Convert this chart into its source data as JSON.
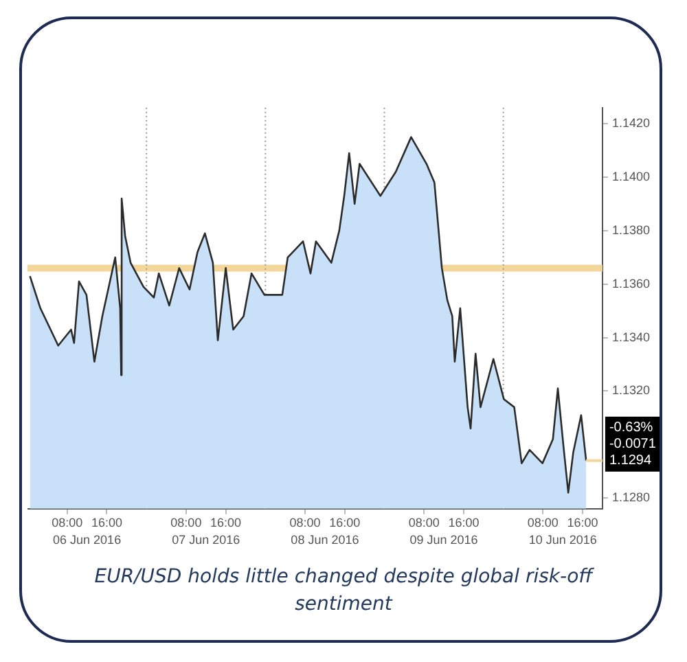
{
  "chart_data": {
    "type": "area",
    "legend": false,
    "marker": "none",
    "line_style": "solid",
    "series": [
      {
        "color": "#c8e1f8",
        "x": [
          "2016-06-06T00:30",
          "2016-06-06T02:36",
          "2016-06-06T06:12",
          "2016-06-06T08:48",
          "2016-06-06T09:24",
          "2016-06-06T10:24",
          "2016-06-06T11:54",
          "2016-06-06T13:30",
          "2016-06-06T15:06",
          "2016-06-06T17:42",
          "2016-06-06T18:42",
          "2016-06-06T18:54",
          "2016-06-06T19:00",
          "2016-06-06T19:42",
          "2016-06-06T20:48",
          "2016-06-06T23:24",
          "2016-06-07T01:30",
          "2016-06-07T02:30",
          "2016-06-07T04:36",
          "2016-06-07T06:36",
          "2016-06-07T08:42",
          "2016-06-07T10:18",
          "2016-06-07T11:48",
          "2016-06-07T13:24",
          "2016-06-07T14:24",
          "2016-06-07T16:00",
          "2016-06-07T17:30",
          "2016-06-07T19:36",
          "2016-06-07T21:12",
          "2016-06-07T23:48",
          "2016-06-08T03:24",
          "2016-06-08T04:30",
          "2016-06-08T07:36",
          "2016-06-08T09:06",
          "2016-06-08T10:12",
          "2016-06-08T13:18",
          "2016-06-08T14:54",
          "2016-06-08T15:54",
          "2016-06-08T16:54",
          "2016-06-08T18:00",
          "2016-06-08T19:00",
          "2016-06-08T23:12",
          "2016-06-09T02:18",
          "2016-06-09T05:24",
          "2016-06-09T08:30",
          "2016-06-09T10:06",
          "2016-06-09T11:36",
          "2016-06-09T12:42",
          "2016-06-09T13:42",
          "2016-06-09T14:12",
          "2016-06-09T15:18",
          "2016-06-09T16:48",
          "2016-06-09T17:24",
          "2016-06-09T18:24",
          "2016-06-09T19:24",
          "2016-06-09T22:00",
          "2016-06-10T00:06",
          "2016-06-10T02:12",
          "2016-06-10T03:42",
          "2016-06-10T05:18",
          "2016-06-10T07:54",
          "2016-06-10T10:00",
          "2016-06-10T11:00",
          "2016-06-10T12:06",
          "2016-06-10T13:06",
          "2016-06-10T14:06",
          "2016-06-10T15:42",
          "2016-06-10T16:42"
        ],
        "values": [
          1.1363,
          1.1351,
          1.1337,
          1.1343,
          1.1338,
          1.1361,
          1.1356,
          1.1331,
          1.1348,
          1.137,
          1.1351,
          1.1326,
          1.1392,
          1.1378,
          1.1368,
          1.1359,
          1.1355,
          1.1364,
          1.1352,
          1.1366,
          1.1358,
          1.1372,
          1.1379,
          1.1368,
          1.1339,
          1.1366,
          1.1343,
          1.1348,
          1.1364,
          1.1356,
          1.1356,
          1.137,
          1.1376,
          1.1364,
          1.1376,
          1.1368,
          1.138,
          1.1393,
          1.1409,
          1.139,
          1.1405,
          1.1393,
          1.1402,
          1.1415,
          1.1405,
          1.1398,
          1.1366,
          1.1354,
          1.1348,
          1.1331,
          1.1351,
          1.1314,
          1.1306,
          1.1334,
          1.1314,
          1.1332,
          1.1317,
          1.1314,
          1.1293,
          1.1298,
          1.1293,
          1.1302,
          1.1321,
          1.13,
          1.1282,
          1.1297,
          1.1311,
          1.1294
        ]
      }
    ],
    "xlim": [
      "2016-06-06T00:00",
      "2016-06-10T20:00"
    ],
    "xticks": [
      {
        "value": "2016-06-06T08:00",
        "label": "08:00"
      },
      {
        "value": "2016-06-06T16:00",
        "label": "16:00"
      },
      {
        "value": "2016-06-07T08:00",
        "label": "08:00"
      },
      {
        "value": "2016-06-07T16:00",
        "label": "16:00"
      },
      {
        "value": "2016-06-08T08:00",
        "label": "08:00"
      },
      {
        "value": "2016-06-08T16:00",
        "label": "16:00"
      },
      {
        "value": "2016-06-09T08:00",
        "label": "08:00"
      },
      {
        "value": "2016-06-09T16:00",
        "label": "16:00"
      },
      {
        "value": "2016-06-10T08:00",
        "label": "08:00"
      },
      {
        "value": "2016-06-10T16:00",
        "label": "16:00"
      }
    ],
    "x2lim": [
      "2016-06-06T00:00",
      "2016-06-10T20:00"
    ],
    "x2ticks": [
      {
        "value": "2016-06-06T12:00",
        "label": "06 Jun 2016"
      },
      {
        "value": "2016-06-07T12:00",
        "label": "07 Jun 2016"
      },
      {
        "value": "2016-06-08T12:00",
        "label": "08 Jun 2016"
      },
      {
        "value": "2016-06-09T12:00",
        "label": "09 Jun 2016"
      },
      {
        "value": "2016-06-10T12:00",
        "label": "10 Jun 2016"
      }
    ],
    "ylim": [
      1.1276,
      1.1426
    ],
    "yticks": [
      {
        "value": 1.128,
        "label": "1.1280"
      },
      {
        "value": 1.132,
        "label": "1.1320"
      },
      {
        "value": 1.134,
        "label": "1.1340"
      },
      {
        "value": 1.136,
        "label": "1.1360"
      },
      {
        "value": 1.138,
        "label": "1.1380"
      },
      {
        "value": 1.14,
        "label": "1.1400"
      },
      {
        "value": 1.142,
        "label": "1.1420"
      }
    ],
    "ref_lines": [
      {
        "axis": "y",
        "value": 1.1366,
        "color": "#f3d79a",
        "line_style": "solid"
      },
      {
        "axis": "x",
        "value": "2016-06-07T00:00",
        "color": "#9a9a9a",
        "line_style": "dotted"
      },
      {
        "axis": "x",
        "value": "2016-06-08T00:00",
        "color": "#9a9a9a",
        "line_style": "dotted"
      },
      {
        "axis": "x",
        "value": "2016-06-09T00:00",
        "color": "#9a9a9a",
        "line_style": "dotted"
      },
      {
        "axis": "x",
        "value": "2016-06-10T00:00",
        "color": "#9a9a9a",
        "line_style": "dotted"
      }
    ],
    "annotations": [
      "-0.63%",
      "-0.0071",
      {
        "text": "1.1294",
        "x": "2016-06-10T16:42",
        "y": 1.1294
      },
      "EUR/USD holds little changed despite global risk-off sentiment"
    ]
  }
}
